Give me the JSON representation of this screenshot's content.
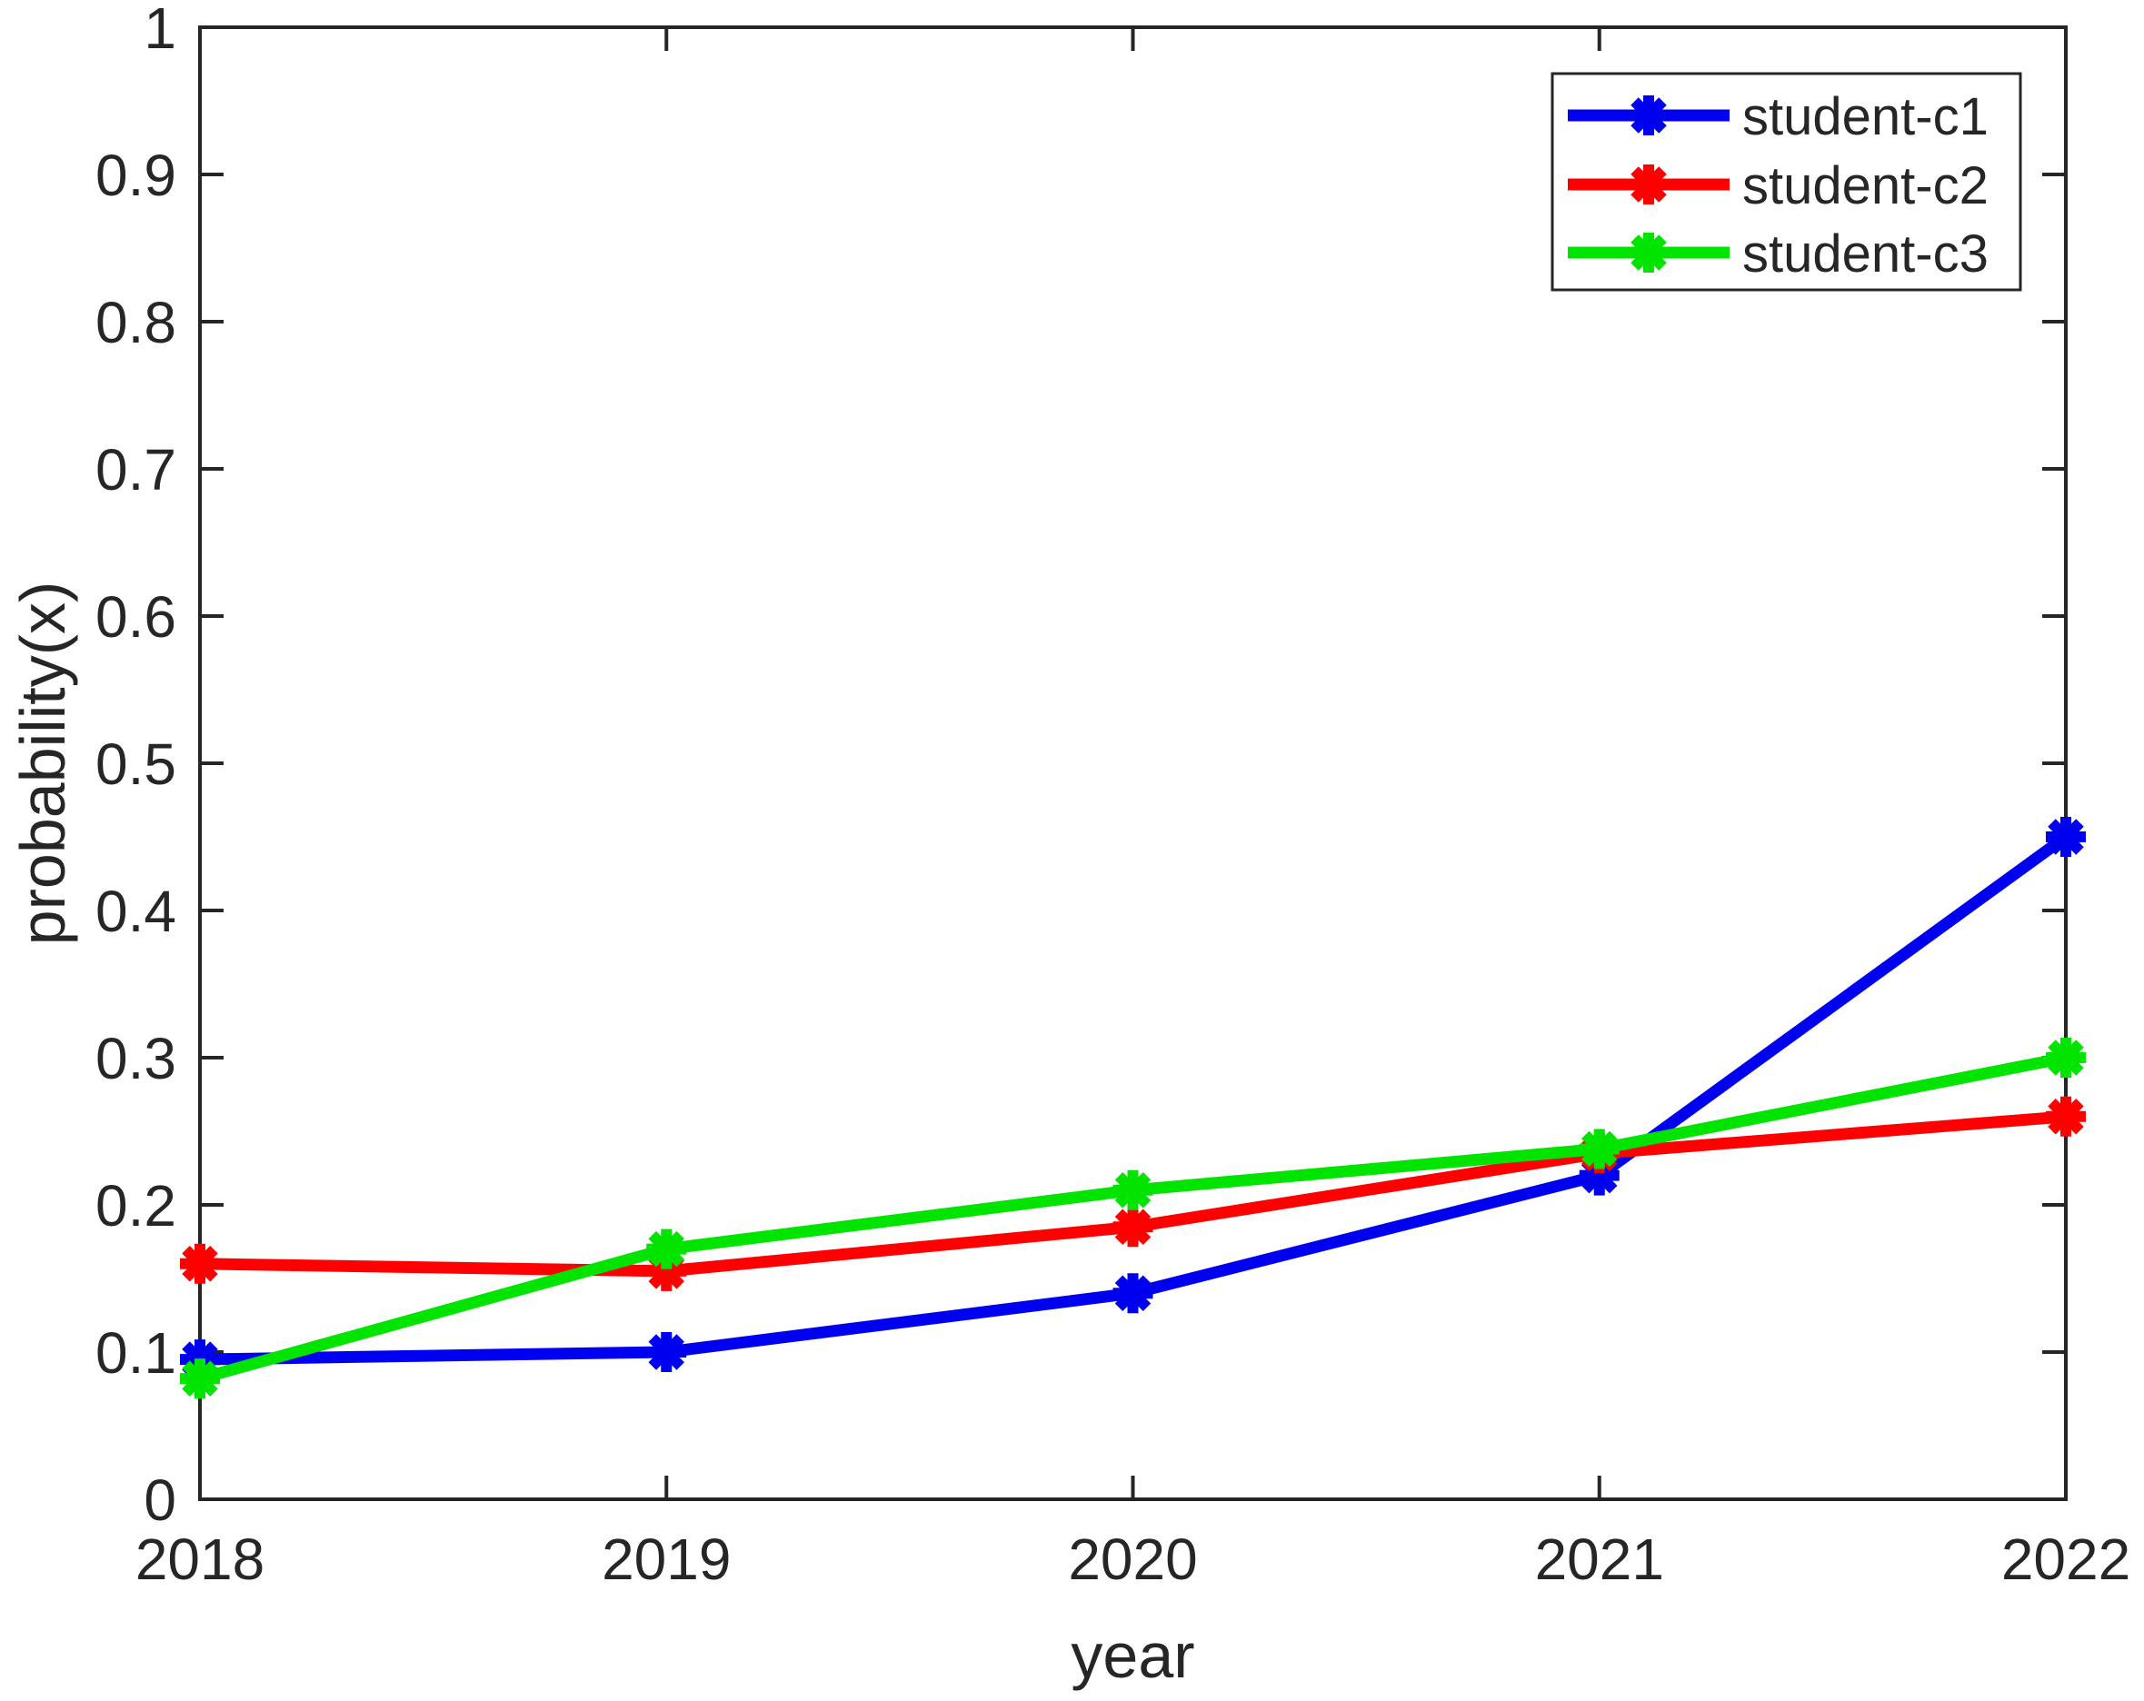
{
  "figure": {
    "background_color": "#ffffff",
    "axis_color": "#262626",
    "text_color": "#262626"
  },
  "chart_data": {
    "type": "line",
    "title": "",
    "xlabel": "year",
    "ylabel": "probability(x)",
    "x": [
      2018,
      2019,
      2020,
      2021,
      2022
    ],
    "xtick_labels": [
      "2018",
      "2019",
      "2020",
      "2021",
      "2022"
    ],
    "xlim": [
      2018,
      2022
    ],
    "ylim": [
      0,
      1
    ],
    "yticks": [
      0,
      0.1,
      0.2,
      0.3,
      0.4,
      0.5,
      0.6,
      0.7,
      0.8,
      0.9,
      1
    ],
    "ytick_labels": [
      "0",
      "0.1",
      "0.2",
      "0.3",
      "0.4",
      "0.5",
      "0.6",
      "0.7",
      "0.8",
      "0.9",
      "1"
    ],
    "grid": false,
    "marker_style": "asterisk",
    "legend": {
      "position": "top-right",
      "entries": [
        "student-c1",
        "student-c2",
        "student-c3"
      ]
    },
    "series": [
      {
        "name": "student-c1",
        "color": "#0000f0",
        "marker": "asterisk",
        "values": [
          0.095,
          0.1,
          0.14,
          0.22,
          0.45
        ]
      },
      {
        "name": "student-c2",
        "color": "#ff0000",
        "marker": "asterisk",
        "values": [
          0.16,
          0.155,
          0.185,
          0.235,
          0.26
        ]
      },
      {
        "name": "student-c3",
        "color": "#00e400",
        "marker": "asterisk",
        "values": [
          0.082,
          0.17,
          0.21,
          0.238,
          0.3
        ]
      }
    ]
  }
}
